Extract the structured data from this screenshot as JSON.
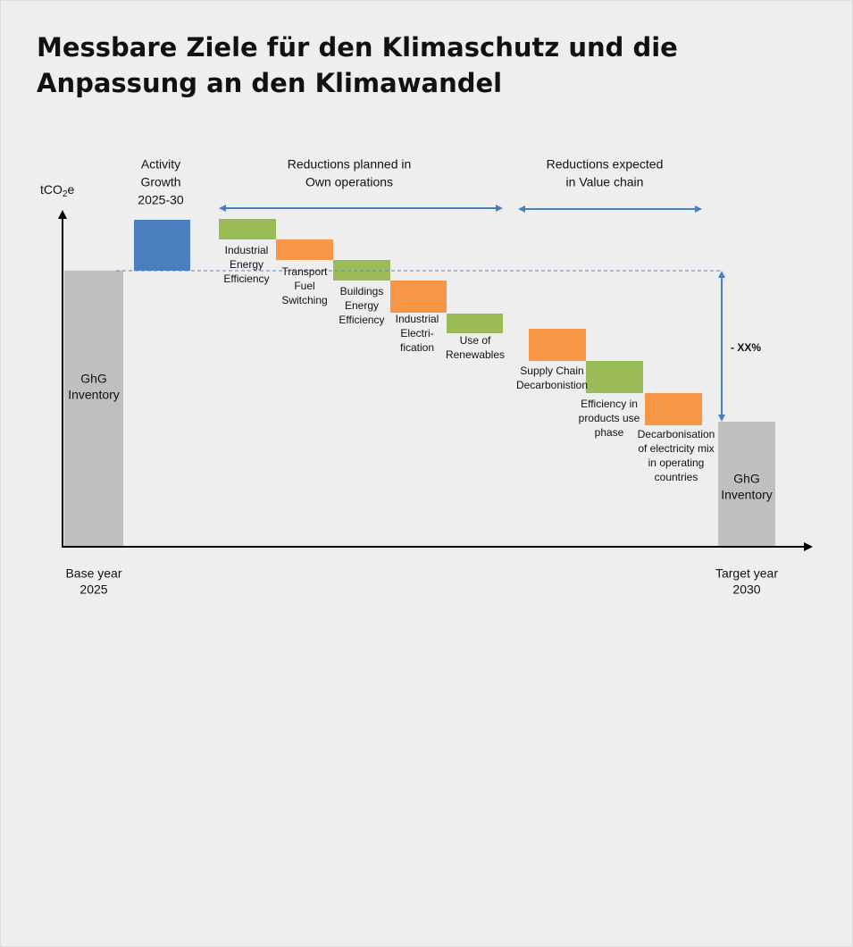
{
  "title": "Messbare Ziele für den Klimaschutz und die Anpassung an den Klimawandel",
  "y_axis_label": {
    "text": "tCO",
    "subscript": "2",
    "suffix": "e"
  },
  "base_bar": {
    "label": [
      "GhG",
      "Inventory"
    ],
    "axis_label": [
      "Base year",
      "2025"
    ]
  },
  "target_bar": {
    "label": [
      "GhG",
      "Inventory"
    ],
    "axis_label": [
      "Target year",
      "2030"
    ]
  },
  "growth_bar": {
    "label": [
      "Activity",
      "Growth",
      "2025-30"
    ]
  },
  "groups": [
    {
      "label": [
        "Reductions planned in",
        "Own operations"
      ]
    },
    {
      "label": [
        "Reductions expected",
        "in Value chain"
      ]
    }
  ],
  "steps": [
    {
      "label": [
        "Industrial",
        "Energy",
        "Efficiency"
      ]
    },
    {
      "label": [
        "Transport",
        "Fuel",
        "Switching"
      ]
    },
    {
      "label": [
        "Buildings",
        "Energy",
        "Efficiency"
      ]
    },
    {
      "label": [
        "Industrial",
        "Electri-",
        "fication"
      ]
    },
    {
      "label": [
        "Use of",
        "Renewables"
      ]
    },
    {
      "label": [
        "Supply Chain",
        "Decarbonistion"
      ]
    },
    {
      "label": [
        "Efficiency in",
        "products use",
        "phase"
      ]
    },
    {
      "label": [
        "Decarbonisation",
        "of electricity mix",
        "in operating",
        "countries"
      ]
    }
  ],
  "reduction_label": "- XX%"
}
